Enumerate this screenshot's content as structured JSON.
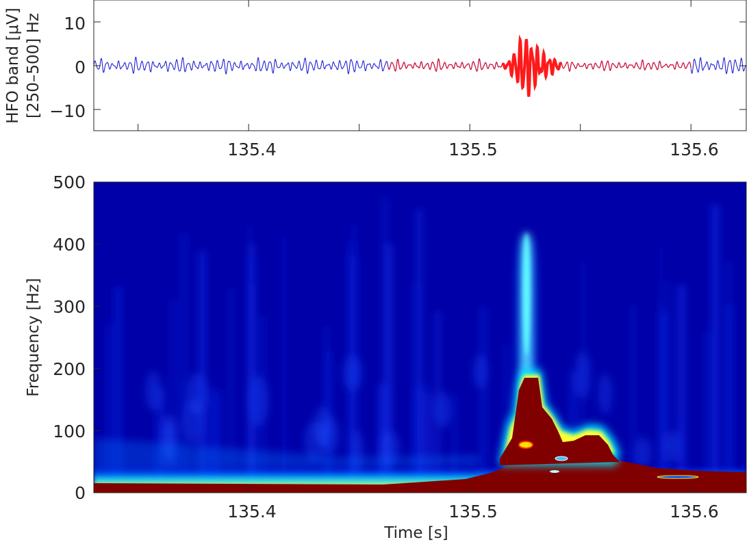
{
  "chart_data": [
    {
      "type": "line",
      "ylabel_line1": "HFO band [μV]",
      "ylabel_line2": "[250–500] Hz",
      "xlim": [
        135.33,
        135.625
      ],
      "ylim": [
        -15,
        15
      ],
      "xticks": [
        135.4,
        135.5,
        135.6
      ],
      "xtick_labels": [
        "135.4",
        "135.5",
        "135.6"
      ],
      "yticks": [
        10,
        0,
        -10
      ],
      "ytick_labels": [
        "10",
        "0",
        "−10"
      ],
      "colors": {
        "baseline": "#1f1fd0",
        "segment": "#c8103e",
        "hfo": "#ff1a1a",
        "axis": "#262626"
      },
      "series": [
        {
          "segment": "baseline",
          "x_range": [
            135.33,
            135.463
          ],
          "amplitude_uV": 1.5
        },
        {
          "segment": "marked",
          "x_range": [
            135.463,
            135.515
          ],
          "amplitude_uV": 1.2
        },
        {
          "segment": "hfo_event",
          "x_range": [
            135.515,
            135.541
          ],
          "peak_uV": 7,
          "min_uV": -7.2
        },
        {
          "segment": "marked",
          "x_range": [
            135.541,
            135.6
          ],
          "amplitude_uV": 1.1
        },
        {
          "segment": "baseline",
          "x_range": [
            135.6,
            135.625
          ],
          "amplitude_uV": 1.8
        }
      ]
    },
    {
      "type": "heatmap",
      "xlabel": "Time [s]",
      "ylabel": "Frequency [Hz]",
      "xlim": [
        135.33,
        135.625
      ],
      "ylim": [
        0,
        500
      ],
      "xticks": [
        135.4,
        135.5,
        135.6
      ],
      "xtick_labels": [
        "135.4",
        "135.5",
        "135.6"
      ],
      "yticks": [
        0,
        100,
        200,
        300,
        400,
        500
      ],
      "ytick_labels": [
        "0",
        "100",
        "200",
        "300",
        "400",
        "500"
      ],
      "colormap": [
        "#00008f",
        "#0000ff",
        "#00ffff",
        "#ffff00",
        "#ff0000",
        "#800000"
      ],
      "features": [
        {
          "kind": "ridge",
          "t": 135.525,
          "f_top": 420
        },
        {
          "kind": "saturated_blob",
          "t_range": [
            135.515,
            135.54
          ],
          "f_max": 190
        },
        {
          "kind": "saturated_blob",
          "t_range": [
            135.545,
            135.575
          ],
          "f_max": 100
        },
        {
          "kind": "low_band",
          "f_range": [
            0,
            30
          ]
        }
      ]
    }
  ]
}
